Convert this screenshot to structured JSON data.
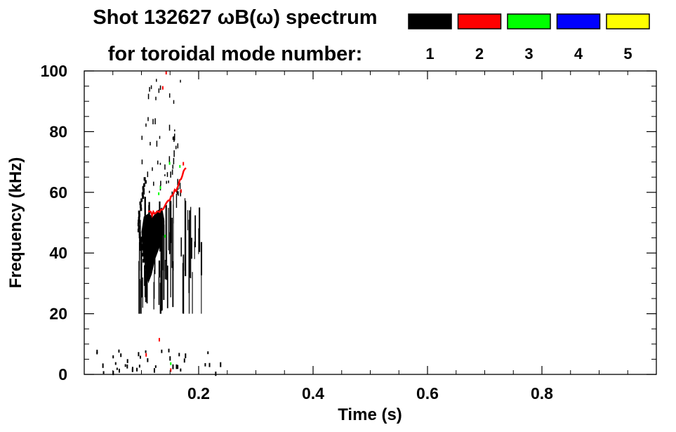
{
  "title_line1": "Shot 132627 ωB(ω) spectrum",
  "title_line2": "for toroidal mode number:",
  "chart_data": {
    "type": "heatmap",
    "xlabel": "Time (s)",
    "ylabel": "Frequency (kHz)",
    "xlim": [
      0.0,
      1.0
    ],
    "ylim": [
      0,
      100
    ],
    "x_ticks": [
      0.2,
      0.4,
      0.6,
      0.8
    ],
    "x_tick_labels": [
      "0.2",
      "0.4",
      "0.6",
      "0.8"
    ],
    "y_ticks": [
      0,
      20,
      40,
      60,
      80,
      100
    ],
    "y_tick_labels": [
      "0",
      "20",
      "40",
      "60",
      "80",
      "100"
    ],
    "grid": false,
    "legend_placement": "top",
    "legend": [
      {
        "label": "1",
        "color": "#000000"
      },
      {
        "label": "2",
        "color": "#ff0000"
      },
      {
        "label": "3",
        "color": "#00ff00"
      },
      {
        "label": "4",
        "color": "#0000ff"
      },
      {
        "label": "5",
        "color": "#ffff00"
      }
    ],
    "regions": [
      {
        "mode": 1,
        "t_start": 0.1,
        "t_end": 0.14,
        "f_min": 26,
        "f_max": 54,
        "description": "dense core"
      },
      {
        "mode": 1,
        "t_start": 0.09,
        "t_end": 0.11,
        "f_min": 40,
        "f_max": 66
      },
      {
        "mode": 2,
        "t_start": 0.11,
        "t_end": 0.18,
        "f_min": 52,
        "f_max": 70
      },
      {
        "mode": 3,
        "t_start": 0.13,
        "t_end": 0.15,
        "f_min": 60,
        "f_max": 64
      }
    ]
  }
}
